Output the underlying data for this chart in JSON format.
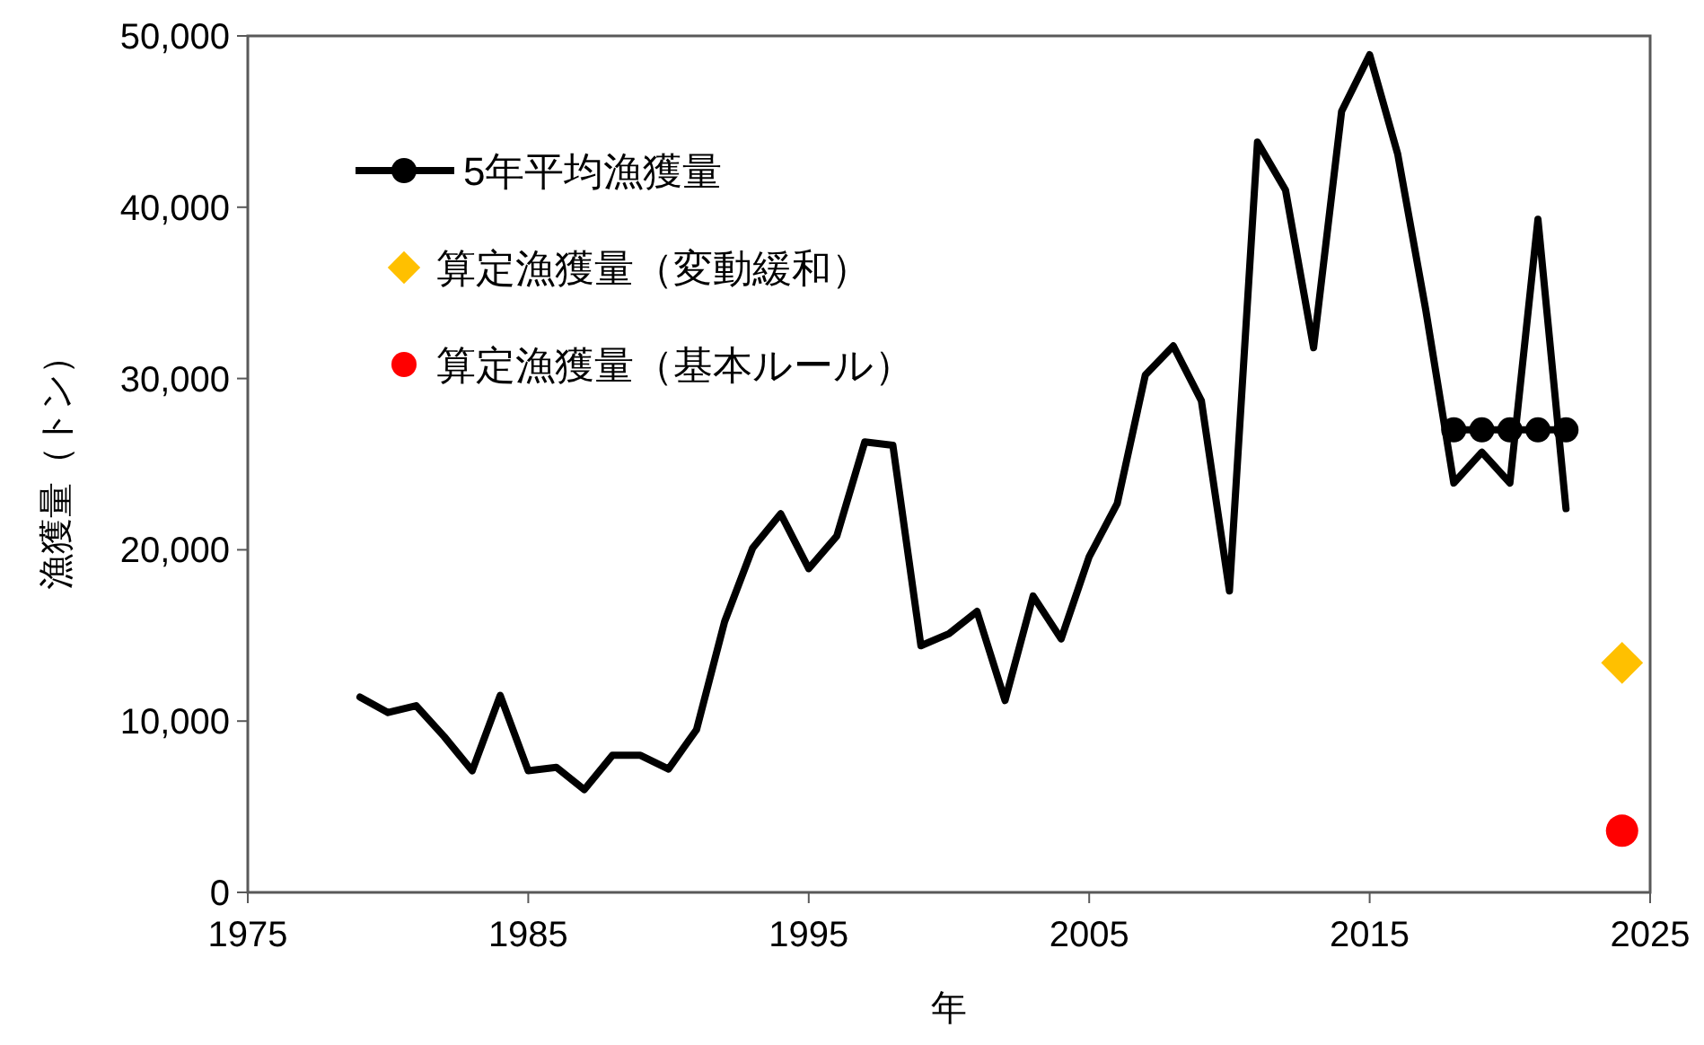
{
  "chart_data": {
    "type": "line",
    "xlabel": "年",
    "ylabel": "漁獲量（トン）",
    "xlim": [
      1975,
      2025
    ],
    "xticks": [
      1975,
      1985,
      1995,
      2005,
      2015,
      2025
    ],
    "ylim": [
      0,
      50000
    ],
    "yticks": [
      0,
      {
        "value": 10000,
        "label": "10,000"
      },
      {
        "value": 20000,
        "label": "20,000"
      },
      {
        "value": 30000,
        "label": "30,000"
      },
      {
        "value": 40000,
        "label": "40,000"
      },
      {
        "value": 50000,
        "label": "50,000"
      }
    ],
    "grid": false,
    "legend": "top left",
    "series": [
      {
        "color": "#000000",
        "marker": "none",
        "x": [
          1979,
          1980,
          1981,
          1982,
          1983,
          1984,
          1985,
          1986,
          1987,
          1988,
          1989,
          1990,
          1991,
          1992,
          1993,
          1994,
          1995,
          1996,
          1997,
          1998,
          1999,
          2000,
          2001,
          2002,
          2003,
          2004,
          2005,
          2006,
          2007,
          2008,
          2009,
          2010,
          2011,
          2012,
          2013,
          2014,
          2015,
          2016,
          2017,
          2018,
          2019,
          2020,
          2021,
          2022
        ],
        "values": [
          11400,
          10500,
          10900,
          9100,
          7100,
          11500,
          7100,
          7300,
          6000,
          8000,
          8000,
          7200,
          9500,
          15800,
          20100,
          22100,
          18900,
          20800,
          26300,
          26100,
          14400,
          15100,
          16400,
          11200,
          17300,
          14800,
          19600,
          22700,
          30200,
          31900,
          28700,
          17600,
          43800,
          41000,
          31800,
          45600,
          48900,
          43100,
          34000,
          23900,
          25700,
          23900,
          39300,
          22400
        ]
      },
      {
        "name": "5年平均漁獲量",
        "color": "#000000",
        "marker": "circle",
        "x": [
          2018,
          2019,
          2020,
          2021,
          2022
        ],
        "values": [
          27000,
          27000,
          27000,
          27000,
          27000
        ]
      },
      {
        "type": "scatter",
        "name": "算定漁獲量（変動緩和）",
        "color": "#ffc000",
        "marker": "diamond",
        "x": [
          2024
        ],
        "values": [
          13400
        ]
      },
      {
        "type": "scatter",
        "name": "算定漁獲量（基本ルール）",
        "color": "#ff0000",
        "marker": "circle",
        "x": [
          2024
        ],
        "values": [
          3600
        ]
      }
    ]
  }
}
